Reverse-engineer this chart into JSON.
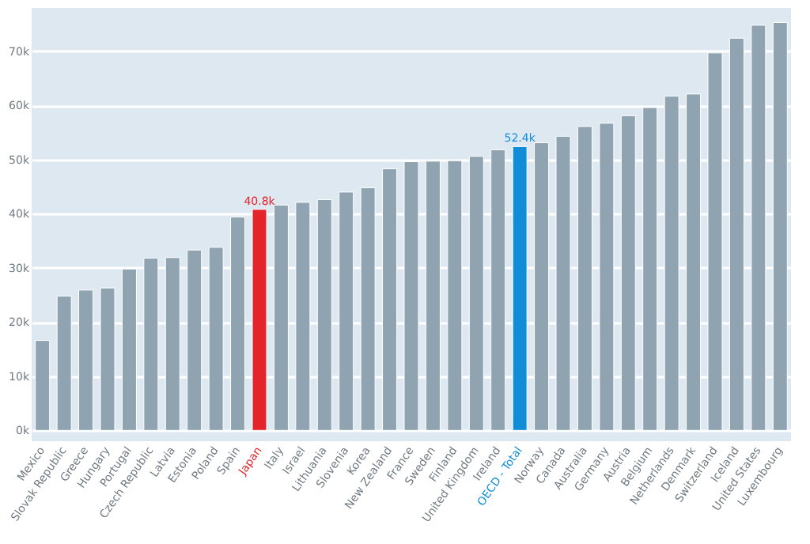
{
  "chart_data": {
    "type": "bar",
    "categories": [
      "Mexico",
      "Slovak Republic",
      "Greece",
      "Hungary",
      "Portugal",
      "Czech Republic",
      "Latvia",
      "Estonia",
      "Poland",
      "Spain",
      "Japan",
      "Italy",
      "Israel",
      "Lithuania",
      "Slovenia",
      "Korea",
      "New Zealand",
      "France",
      "Sweden",
      "Finland",
      "United Kingdom",
      "Ireland",
      "OECD - Total",
      "Norway",
      "Canada",
      "Australia",
      "Germany",
      "Austria",
      "Belgium",
      "Netherlands",
      "Denmark",
      "Switzerland",
      "Iceland",
      "United States",
      "Luxembourg"
    ],
    "values": [
      16600,
      24800,
      25900,
      26300,
      29800,
      31800,
      31900,
      33300,
      33800,
      39400,
      40800,
      41600,
      42100,
      42600,
      44000,
      44800,
      48300,
      49600,
      49700,
      49800,
      50600,
      51800,
      52400,
      53100,
      54300,
      56100,
      56700,
      58100,
      59600,
      61700,
      62100,
      69700,
      72400,
      74800,
      75300
    ],
    "colors": [
      "#8fa3b0",
      "#8fa3b0",
      "#8fa3b0",
      "#8fa3b0",
      "#8fa3b0",
      "#8fa3b0",
      "#8fa3b0",
      "#8fa3b0",
      "#8fa3b0",
      "#8fa3b0",
      "#e3242b",
      "#8fa3b0",
      "#8fa3b0",
      "#8fa3b0",
      "#8fa3b0",
      "#8fa3b0",
      "#8fa3b0",
      "#8fa3b0",
      "#8fa3b0",
      "#8fa3b0",
      "#8fa3b0",
      "#8fa3b0",
      "#118dd8",
      "#8fa3b0",
      "#8fa3b0",
      "#8fa3b0",
      "#8fa3b0",
      "#8fa3b0",
      "#8fa3b0",
      "#8fa3b0",
      "#8fa3b0",
      "#8fa3b0",
      "#8fa3b0",
      "#8fa3b0",
      "#8fa3b0"
    ],
    "value_labels": [
      null,
      null,
      null,
      null,
      null,
      null,
      null,
      null,
      null,
      null,
      "40.8k",
      null,
      null,
      null,
      null,
      null,
      null,
      null,
      null,
      null,
      null,
      null,
      "52.4k",
      null,
      null,
      null,
      null,
      null,
      null,
      null,
      null,
      null,
      null,
      null,
      null
    ],
    "ylim": [
      -2000,
      78000
    ],
    "yticks": [
      {
        "value": 0,
        "label": "0k"
      },
      {
        "value": 10000,
        "label": "10k"
      },
      {
        "value": 20000,
        "label": "20k"
      },
      {
        "value": 30000,
        "label": "30k"
      },
      {
        "value": 40000,
        "label": "40k"
      },
      {
        "value": 50000,
        "label": "50k"
      },
      {
        "value": 60000,
        "label": "60k"
      },
      {
        "value": 70000,
        "label": "70k"
      }
    ],
    "grid": "y"
  }
}
